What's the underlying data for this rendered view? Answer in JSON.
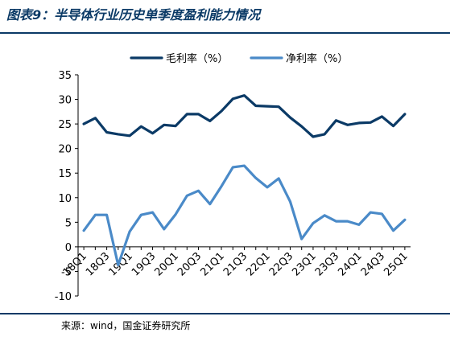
{
  "title": "图表9：半导体行业历史单季度盈利能力情况",
  "source": "来源：wind，国金证券研究所",
  "chart_data": {
    "type": "line",
    "categories": [
      "18Q1",
      "18Q2",
      "18Q3",
      "18Q4",
      "19Q1",
      "19Q2",
      "19Q3",
      "19Q4",
      "20Q1",
      "20Q2",
      "20Q3",
      "20Q4",
      "21Q1",
      "21Q2",
      "21Q3",
      "21Q4",
      "22Q1",
      "22Q2",
      "22Q3",
      "22Q4",
      "23Q1",
      "23Q2",
      "23Q3",
      "23Q4",
      "24Q1",
      "24Q2",
      "24Q3",
      "24Q4",
      "25Q1"
    ],
    "tick_labels": [
      "18Q1",
      "",
      "18Q3",
      "",
      "19Q1",
      "",
      "19Q3",
      "",
      "20Q1",
      "",
      "20Q3",
      "",
      "21Q1",
      "",
      "21Q3",
      "",
      "22Q1",
      "",
      "22Q3",
      "",
      "23Q1",
      "",
      "23Q3",
      "",
      "24Q1",
      "",
      "24Q3",
      "",
      "25Q1"
    ],
    "series": [
      {
        "name": "毛利率（%）",
        "color": "#0b3a66",
        "values": [
          25.0,
          26.2,
          23.3,
          22.9,
          22.6,
          24.5,
          23.1,
          24.8,
          24.6,
          27.0,
          27.0,
          25.6,
          27.6,
          30.1,
          30.8,
          28.7,
          28.6,
          28.5,
          26.3,
          24.5,
          22.4,
          22.9,
          25.7,
          24.8,
          25.2,
          25.3,
          26.5,
          24.6,
          27.0
        ]
      },
      {
        "name": "净利率（%）",
        "color": "#4a8ac8",
        "values": [
          3.3,
          6.5,
          6.5,
          -3.7,
          3.1,
          6.5,
          7.0,
          3.6,
          6.6,
          10.4,
          11.4,
          8.7,
          12.3,
          16.2,
          16.5,
          14.0,
          12.1,
          13.9,
          9.2,
          1.6,
          4.8,
          6.4,
          5.2,
          5.2,
          4.5,
          7.0,
          6.7,
          3.3,
          5.5
        ]
      }
    ],
    "ylim": [
      -10,
      35
    ],
    "yticks": [
      -10,
      -5,
      0,
      5,
      10,
      15,
      20,
      25,
      30,
      35
    ],
    "legend_position": "top"
  }
}
